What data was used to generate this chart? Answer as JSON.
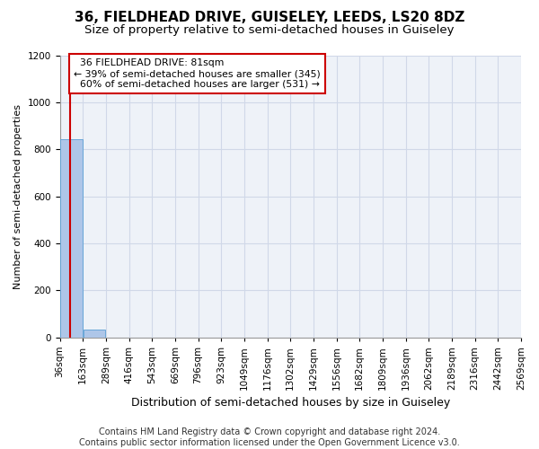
{
  "title": "36, FIELDHEAD DRIVE, GUISELEY, LEEDS, LS20 8DZ",
  "subtitle": "Size of property relative to semi-detached houses in Guiseley",
  "xlabel": "Distribution of semi-detached houses by size in Guiseley",
  "ylabel": "Number of semi-detached properties",
  "property_label": "36 FIELDHEAD DRIVE: 81sqm",
  "smaller_pct": 39,
  "smaller_count": 345,
  "larger_pct": 60,
  "larger_count": 531,
  "bin_labels": [
    "36sqm",
    "163sqm",
    "289sqm",
    "416sqm",
    "543sqm",
    "669sqm",
    "796sqm",
    "923sqm",
    "1049sqm",
    "1176sqm",
    "1302sqm",
    "1429sqm",
    "1556sqm",
    "1682sqm",
    "1809sqm",
    "1936sqm",
    "2062sqm",
    "2189sqm",
    "2316sqm",
    "2442sqm",
    "2569sqm"
  ],
  "bar_heights": [
    845,
    35,
    0,
    0,
    0,
    0,
    0,
    0,
    0,
    0,
    0,
    0,
    0,
    0,
    0,
    0,
    0,
    0,
    0,
    0
  ],
  "bar_color": "#aec6e8",
  "bar_edgecolor": "#5a9fd4",
  "vline_color": "#cc0000",
  "vline_bin": 0.45,
  "annotation_box_color": "#cc0000",
  "ylim": [
    0,
    1200
  ],
  "yticks": [
    0,
    200,
    400,
    600,
    800,
    1000,
    1200
  ],
  "grid_color": "#d0d8e8",
  "bg_color": "#eef2f8",
  "footer": "Contains HM Land Registry data © Crown copyright and database right 2024.\nContains public sector information licensed under the Open Government Licence v3.0.",
  "title_fontsize": 11,
  "subtitle_fontsize": 9.5,
  "xlabel_fontsize": 9,
  "ylabel_fontsize": 8,
  "tick_fontsize": 7.5,
  "footer_fontsize": 7
}
